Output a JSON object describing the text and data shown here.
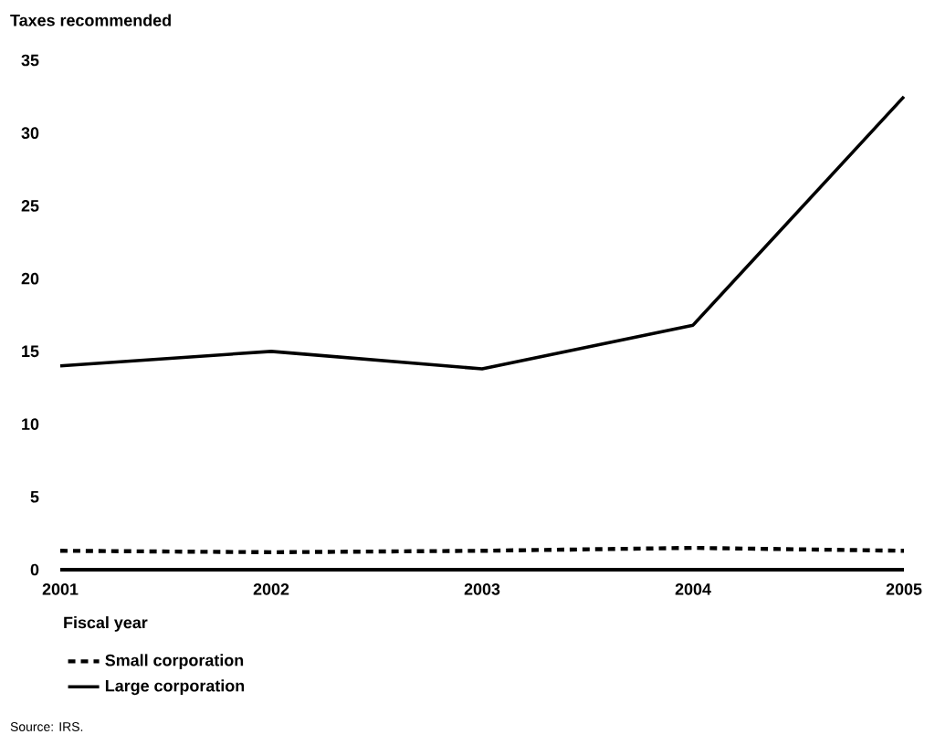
{
  "chart_data": {
    "type": "line",
    "ylabel": "Taxes recommended",
    "xlabel": "Fiscal year",
    "x": [
      2001,
      2002,
      2003,
      2004,
      2005
    ],
    "series": [
      {
        "name": "Small corporation",
        "color": "#000000",
        "line_style": "dashed",
        "values": [
          1.3,
          1.2,
          1.3,
          1.5,
          1.3
        ]
      },
      {
        "name": "Large corporation",
        "color": "#000000",
        "line_style": "solid",
        "values": [
          14,
          15,
          13.8,
          16.8,
          32.5
        ]
      }
    ],
    "xlim": [
      2001,
      2005
    ],
    "xticks": [
      2001,
      2002,
      2003,
      2004,
      2005
    ],
    "ylim": [
      0,
      35
    ],
    "yticks": [
      0,
      5,
      10,
      15,
      20,
      25,
      30,
      35
    ],
    "grid": false,
    "legend": "bottom left",
    "marker": "none",
    "annotations": [
      "Source: IRS."
    ]
  }
}
